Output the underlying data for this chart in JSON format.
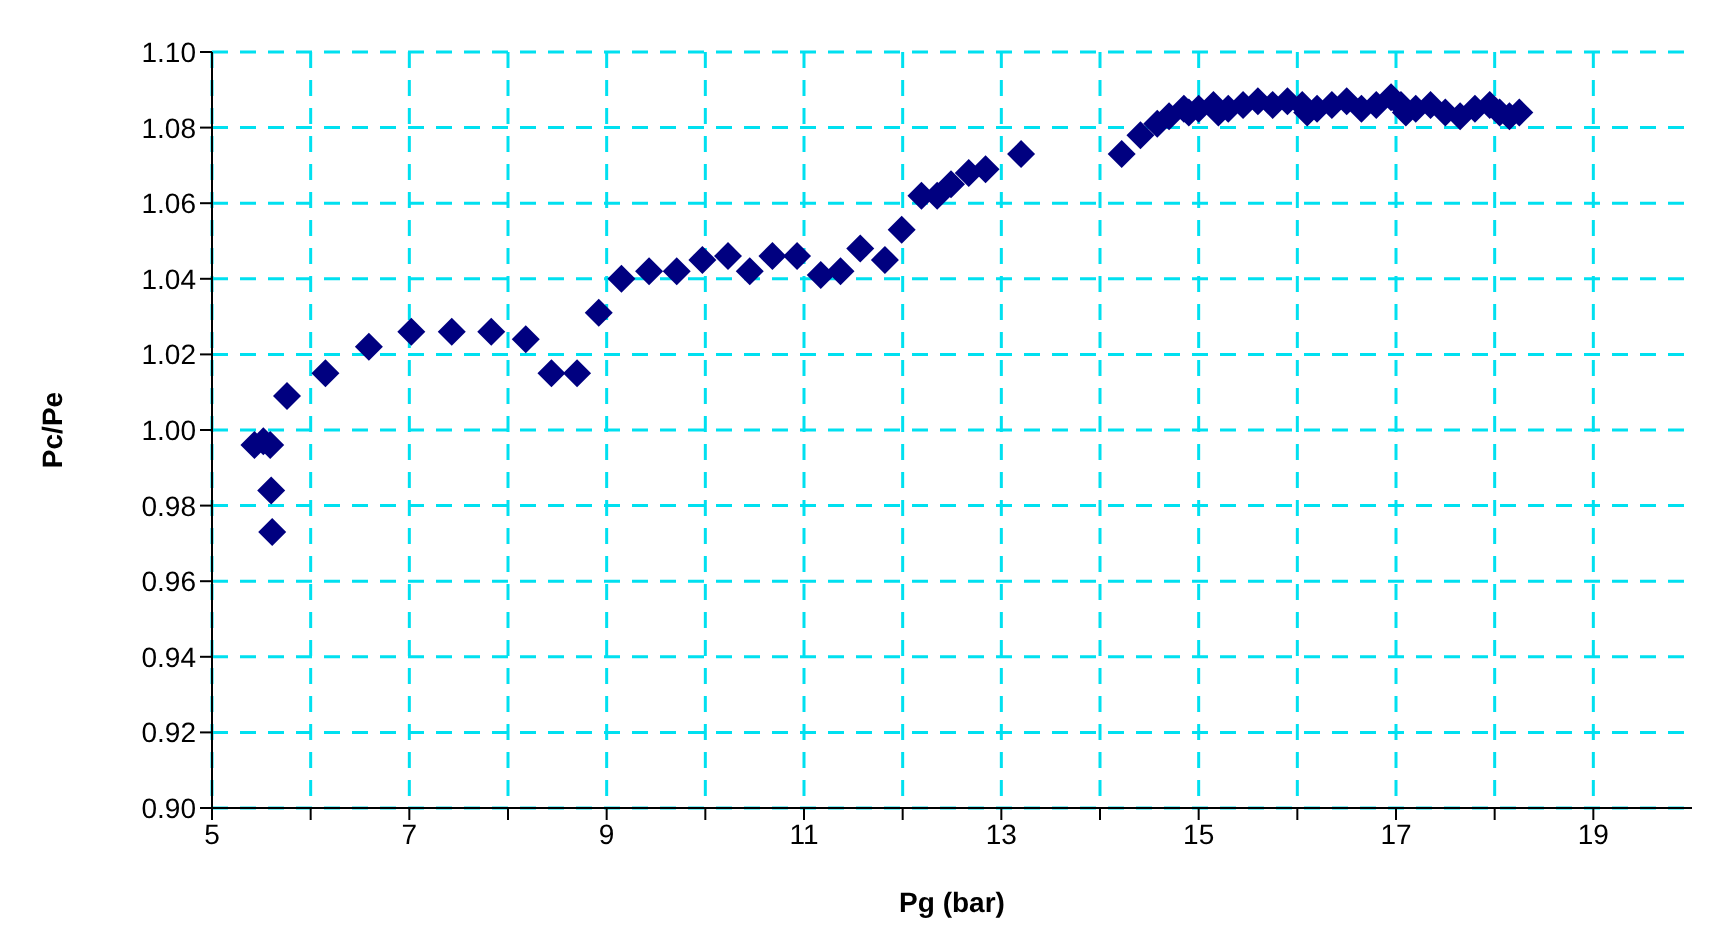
{
  "chart_data": {
    "type": "scatter",
    "xlabel": "Pg (bar)",
    "ylabel": "Pc/Pe",
    "marker": "diamond",
    "grid": true,
    "xlim": [
      5,
      20
    ],
    "xticks": [
      5,
      {
        "value": 6,
        "label": null
      },
      7,
      {
        "value": 8,
        "label": null
      },
      9,
      {
        "value": 10,
        "label": null
      },
      11,
      {
        "value": 12,
        "label": null
      },
      13,
      {
        "value": 14,
        "label": null
      },
      15,
      {
        "value": 16,
        "label": null
      },
      17,
      {
        "value": 18,
        "label": null
      },
      19
    ],
    "ylim": [
      0.9,
      1.1
    ],
    "yticks": [
      {
        "value": 0.9,
        "label": "0.90"
      },
      {
        "value": 0.92,
        "label": "0.92"
      },
      {
        "value": 0.94,
        "label": "0.94"
      },
      {
        "value": 0.96,
        "label": "0.96"
      },
      {
        "value": 0.98,
        "label": "0.98"
      },
      {
        "value": 1.0,
        "label": "1.00"
      },
      {
        "value": 1.02,
        "label": "1.02"
      },
      {
        "value": 1.04,
        "label": "1.04"
      },
      {
        "value": 1.06,
        "label": "1.06"
      },
      {
        "value": 1.08,
        "label": "1.08"
      },
      {
        "value": 1.1,
        "label": "1.10"
      }
    ],
    "series": [
      {
        "color": "#000080",
        "x": [
          5.43,
          5.52,
          5.59,
          5.6,
          5.61,
          5.76,
          6.15,
          6.59,
          7.02,
          7.43,
          7.83,
          8.18,
          8.44,
          8.7,
          8.92,
          9.15,
          9.43,
          9.71,
          9.97,
          10.23,
          10.45,
          10.68,
          10.93,
          11.17,
          11.37,
          11.57,
          11.82,
          11.99,
          12.19,
          12.35,
          12.49,
          12.67,
          12.84,
          13.2,
          14.22,
          14.41,
          14.58,
          14.7,
          14.85,
          14.9,
          15.0,
          15.15,
          15.2,
          15.3,
          15.45,
          15.6,
          15.75,
          15.9,
          16.05,
          16.1,
          16.2,
          16.35,
          16.5,
          16.65,
          16.8,
          16.95,
          17.05,
          17.1,
          17.2,
          17.35,
          17.5,
          17.65,
          17.8,
          17.95,
          18.05,
          18.15,
          18.25
        ],
        "values": [
          0.996,
          0.997,
          0.996,
          0.984,
          0.973,
          1.009,
          1.015,
          1.022,
          1.026,
          1.026,
          1.026,
          1.024,
          1.015,
          1.015,
          1.031,
          1.04,
          1.042,
          1.042,
          1.045,
          1.046,
          1.042,
          1.046,
          1.046,
          1.041,
          1.042,
          1.048,
          1.045,
          1.053,
          1.062,
          1.062,
          1.065,
          1.068,
          1.069,
          1.073,
          1.073,
          1.078,
          1.081,
          1.083,
          1.085,
          1.084,
          1.085,
          1.086,
          1.084,
          1.085,
          1.086,
          1.087,
          1.086,
          1.087,
          1.086,
          1.084,
          1.085,
          1.086,
          1.087,
          1.085,
          1.086,
          1.088,
          1.086,
          1.084,
          1.085,
          1.086,
          1.084,
          1.083,
          1.085,
          1.086,
          1.084,
          1.083,
          1.084
        ]
      }
    ]
  }
}
